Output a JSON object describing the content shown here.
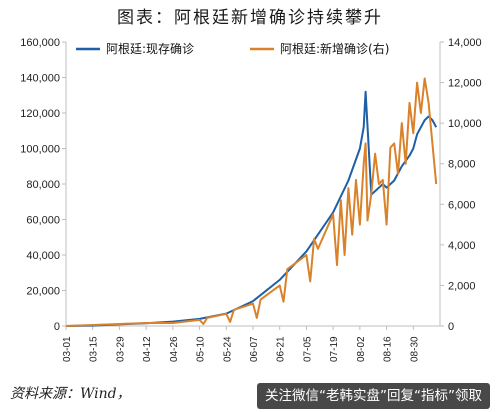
{
  "title": "图表：阿根廷新增确诊持续攀升",
  "source": "资料来源：Wind，",
  "watermark": "关注微信“老韩实盘”回复“指标”领取",
  "colors": {
    "current": "#1f5fa6",
    "new": "#d9822b",
    "axis": "#bfbfbf"
  },
  "chart_data": {
    "type": "line",
    "title": "图表：阿根廷新增确诊持续攀升",
    "legend_position": "top",
    "grid": false,
    "x_ticks": [
      "03-01",
      "03-15",
      "03-29",
      "04-12",
      "04-26",
      "05-10",
      "05-24",
      "06-07",
      "06-21",
      "07-05",
      "07-19",
      "08-02",
      "08-16",
      "08-30"
    ],
    "y_left": {
      "ylim": [
        0,
        160000
      ],
      "ticks": [
        "0",
        "20,000",
        "40,000",
        "60,000",
        "80,000",
        "100,000",
        "120,000",
        "140,000",
        "160,000"
      ]
    },
    "y_right": {
      "ylim": [
        0,
        14000
      ],
      "ticks": [
        "0",
        "2,000",
        "4,000",
        "6,000",
        "8,000",
        "10,000",
        "12,000",
        "14,000"
      ]
    },
    "series": [
      {
        "name": "阿根廷:现存确诊",
        "axis": "left",
        "x_day": [
          0,
          14,
          28,
          42,
          56,
          70,
          84,
          98,
          112,
          126,
          140,
          148,
          154,
          156,
          157,
          160,
          166,
          168,
          172,
          176,
          180,
          182,
          184,
          186,
          188,
          190,
          192,
          194
        ],
        "values": [
          0,
          200,
          900,
          1600,
          2500,
          4000,
          7000,
          14000,
          26000,
          42000,
          64000,
          82000,
          100000,
          112000,
          132000,
          74000,
          80000,
          78000,
          82000,
          90000,
          96000,
          100000,
          108000,
          112000,
          116000,
          118000,
          116000,
          112000
        ]
      },
      {
        "name": "阿根廷:新增确诊",
        "axis": "right",
        "x_day": [
          0,
          14,
          28,
          42,
          56,
          70,
          72,
          74,
          84,
          86,
          88,
          98,
          100,
          102,
          112,
          114,
          116,
          126,
          128,
          130,
          132,
          140,
          142,
          144,
          146,
          148,
          150,
          152,
          154,
          156,
          157,
          158,
          160,
          162,
          164,
          166,
          168,
          170,
          172,
          174,
          176,
          178,
          180,
          182,
          184,
          186,
          188,
          190,
          192,
          194
        ],
        "values": [
          0,
          50,
          100,
          150,
          150,
          300,
          100,
          400,
          600,
          200,
          800,
          1100,
          400,
          1300,
          2000,
          1200,
          2800,
          3500,
          2200,
          4300,
          3800,
          5500,
          3000,
          6200,
          3500,
          6800,
          4500,
          7200,
          5000,
          8000,
          9000,
          5200,
          6500,
          8500,
          7000,
          7200,
          5000,
          8800,
          9000,
          7500,
          10000,
          8000,
          11000,
          9500,
          12000,
          10500,
          12200,
          11000,
          9000,
          7000
        ]
      }
    ]
  }
}
